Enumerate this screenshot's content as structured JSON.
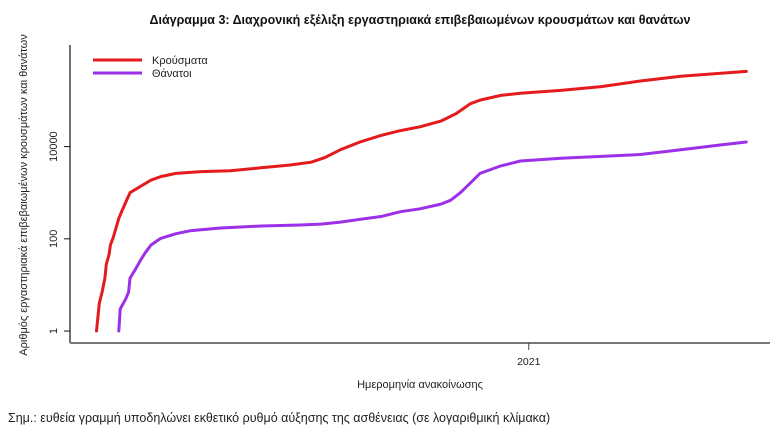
{
  "chart_data": {
    "type": "line",
    "title": "Διάγραμμα 3: Διαχρονική εξέλιξη εργαστηριακά επιβεβαιωμένων κρουσμάτων και θανάτων",
    "xlabel": "Ημερομηνία ανακοίνωσης",
    "ylabel": "Αριθμός εργαστηριακά επιβεβαιωμένων κρουσμάτων και θανάτων",
    "yscale": "log",
    "ylim": [
      0.55,
      1600000
    ],
    "xlim": [
      -19,
      483
    ],
    "x_unit": "days since first reported case",
    "x_ticks": [
      {
        "value": 310,
        "label": "2021"
      }
    ],
    "y_ticks": [
      {
        "value": 1,
        "label": "1"
      },
      {
        "value": 100,
        "label": "100"
      },
      {
        "value": 10000,
        "label": "10000"
      }
    ],
    "legend_position": "top-left",
    "series": [
      {
        "name": "Κρούσματα",
        "color": "#e41a1c",
        "x": [
          0,
          2,
          4,
          6,
          7,
          9,
          10,
          12,
          14,
          16,
          18,
          21,
          24,
          32,
          39,
          46,
          57,
          75,
          96,
          118,
          139,
          154,
          164,
          175,
          189,
          204,
          218,
          232,
          247,
          258,
          268,
          275,
          290,
          304,
          333,
          362,
          390,
          419,
          448,
          466
        ],
        "values": [
          1,
          4,
          7,
          14,
          28,
          45,
          73,
          107,
          172,
          277,
          387,
          625,
          1000,
          1400,
          1870,
          2240,
          2620,
          2870,
          3000,
          3470,
          3990,
          4590,
          5850,
          8560,
          12600,
          17500,
          22300,
          26900,
          35700,
          52200,
          85000,
          102000,
          129000,
          144000,
          166000,
          200000,
          265000,
          337000,
          389000,
          427000
        ]
      },
      {
        "name": "Θάνατοι",
        "color": "#9b30e8",
        "x": [
          16,
          17,
          21,
          23,
          24,
          28,
          32,
          35,
          39,
          46,
          57,
          67,
          89,
          118,
          146,
          161,
          175,
          189,
          204,
          218,
          232,
          247,
          254,
          261,
          268,
          275,
          290,
          304,
          333,
          362,
          390,
          419,
          448,
          466
        ],
        "values": [
          1,
          3,
          5,
          7,
          14,
          22,
          36,
          50,
          73,
          102,
          129,
          149,
          172,
          190,
          199,
          209,
          230,
          265,
          305,
          387,
          447,
          566,
          688,
          1000,
          1610,
          2620,
          3820,
          4870,
          5580,
          6130,
          6760,
          8560,
          10900,
          12600
        ]
      }
    ]
  },
  "note": "Σημ.: ευθεία γραμμή υποδηλώνει εκθετικό ρυθμό αύξησης της ασθένειας (σε λογαριθμική κλίμακα)"
}
